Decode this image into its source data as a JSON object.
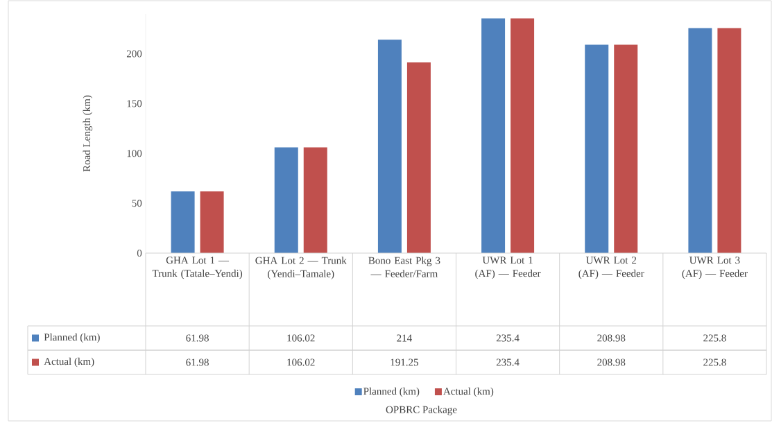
{
  "chart_data": {
    "type": "bar",
    "ylabel": "Road Length (km)",
    "annotations": [
      "OPBRC Package"
    ],
    "categories": [
      "GHA Lot 1 — Trunk (Tatale–Yendi)",
      "GHA Lot 2 — Trunk (Yendi–Tamale)",
      "Bono East Pkg 3 — Feeder/Farm",
      "UWR Lot 1 (AF) — Feeder",
      "UWR Lot 2 (AF) — Feeder",
      "UWR Lot 3 (AF) — Feeder"
    ],
    "series": [
      {
        "name": "Planned (km)",
        "color": "#4f81bd",
        "values": [
          61.98,
          106.02,
          214,
          235.4,
          208.98,
          225.8
        ],
        "value_labels": [
          "61.98",
          "106.02",
          "214",
          "235.4",
          "208.98",
          "225.8"
        ]
      },
      {
        "name": "Actual (km)",
        "color": "#c0504d",
        "values": [
          61.98,
          106.02,
          191.25,
          235.4,
          208.98,
          225.8
        ],
        "value_labels": [
          "61.98",
          "106.02",
          "191.25",
          "235.4",
          "208.98",
          "225.8"
        ]
      }
    ],
    "ylim": [
      0,
      240
    ],
    "yticks": [
      0,
      50,
      100,
      150,
      200
    ],
    "legend": "bottom"
  }
}
